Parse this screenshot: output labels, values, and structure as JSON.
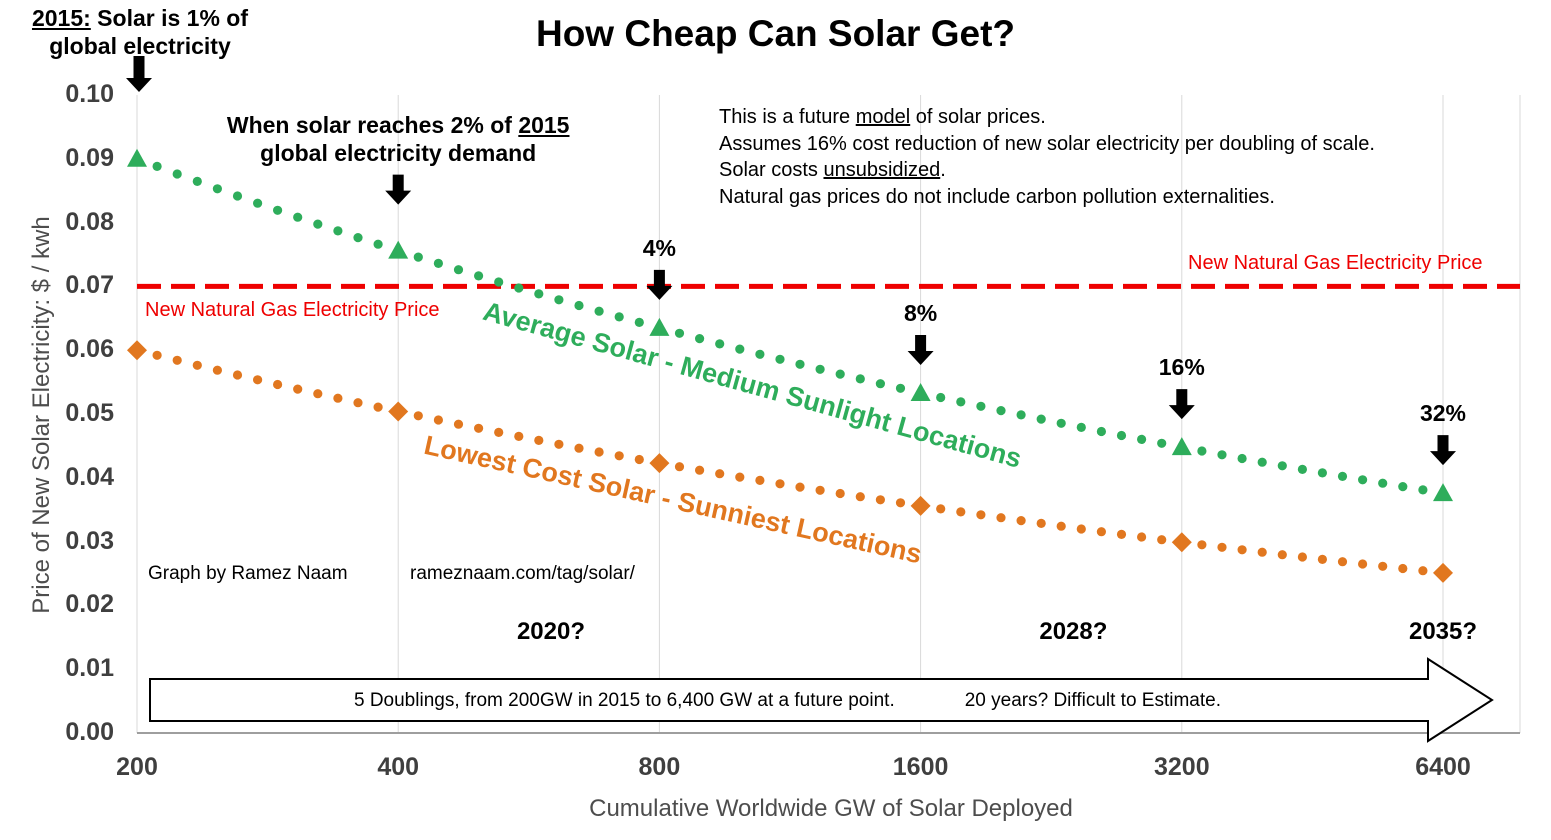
{
  "chart_data": {
    "type": "scatter",
    "title": "How Cheap Can Solar Get?",
    "xlabel": "Cumulative Worldwide GW of Solar Deployed",
    "ylabel": "Price of New Solar Electricity: $ / kwh",
    "x_scale": "log2",
    "x_ticks": [
      200,
      400,
      800,
      1600,
      3200,
      6400
    ],
    "y_ticks": [
      "0.00",
      "0.01",
      "0.02",
      "0.03",
      "0.04",
      "0.05",
      "0.06",
      "0.07",
      "0.08",
      "0.09",
      "0.10"
    ],
    "ylim": [
      0,
      0.1
    ],
    "cost_reduction_per_doubling": 0.16,
    "grid_color": "#d9d9d9",
    "series": [
      {
        "name": "Average Solar - Medium Sunlight Locations",
        "color": "#2EAD5B",
        "marker": "triangle",
        "x": [
          200,
          400,
          800,
          1600,
          3200,
          6400
        ],
        "values": [
          0.09,
          0.0756,
          0.0635,
          0.0533,
          0.0448,
          0.0376
        ]
      },
      {
        "name": "Lowest Cost Solar - Sunniest Locations",
        "color": "#E1771F",
        "marker": "diamond",
        "x": [
          200,
          400,
          800,
          1600,
          3200,
          6400
        ],
        "values": [
          0.06,
          0.0504,
          0.0423,
          0.0356,
          0.0299,
          0.0251
        ]
      }
    ],
    "reference_line": {
      "label": "New Natural Gas Electricity Price",
      "value": 0.07,
      "color": "#EE0000"
    },
    "annotations": [
      {
        "placement": "top-left",
        "gw": 200,
        "lines": [
          [
            {
              "t": "2015:",
              "u": true
            },
            {
              "t": " Solar is 1% of",
              "u": false
            }
          ],
          [
            {
              "t": "global electricity",
              "u": false
            }
          ]
        ]
      },
      {
        "placement": "above-marker",
        "gw": 400,
        "lines": [
          [
            {
              "t": "When solar reaches 2% of ",
              "u": false
            },
            {
              "t": "2015",
              "u": true
            }
          ],
          [
            {
              "t": "global electricity demand",
              "u": false
            }
          ]
        ]
      },
      {
        "placement": "above-marker",
        "gw": 800,
        "lines": [
          [
            {
              "t": "4%",
              "u": false
            }
          ]
        ]
      },
      {
        "placement": "above-marker",
        "gw": 1600,
        "lines": [
          [
            {
              "t": "8%",
              "u": false
            }
          ]
        ]
      },
      {
        "placement": "above-marker",
        "gw": 3200,
        "lines": [
          [
            {
              "t": "16%",
              "u": false
            }
          ]
        ]
      },
      {
        "placement": "above-marker",
        "gw": 6400,
        "lines": [
          [
            {
              "t": "32%",
              "u": false
            }
          ]
        ]
      }
    ],
    "notes": [
      [
        {
          "t": "This is a future ",
          "u": false
        },
        {
          "t": "model",
          "u": true
        },
        {
          "t": " of solar prices.",
          "u": false
        }
      ],
      [
        {
          "t": "Assumes 16% cost reduction of new solar electricity per doubling of scale.",
          "u": false
        }
      ],
      [
        {
          "t": "Solar costs ",
          "u": false
        },
        {
          "t": "unsubsidized",
          "u": true
        },
        {
          "t": ".",
          "u": false
        }
      ],
      [
        {
          "t": "Natural gas prices do not include carbon pollution externalities.",
          "u": false
        }
      ]
    ],
    "year_labels": [
      {
        "label": "2020?",
        "gw": 600
      },
      {
        "label": "2028?",
        "gw": 2400
      },
      {
        "label": "2035?",
        "gw": 6400
      }
    ],
    "bottom_arrow": {
      "text_left": "5 Doublings, from 200GW in 2015 to 6,400 GW at a future point.",
      "text_right": "20 years? Difficult to Estimate."
    },
    "credit": {
      "author": "Graph by Ramez Naam",
      "url": "rameznaam.com/tag/solar/"
    }
  }
}
